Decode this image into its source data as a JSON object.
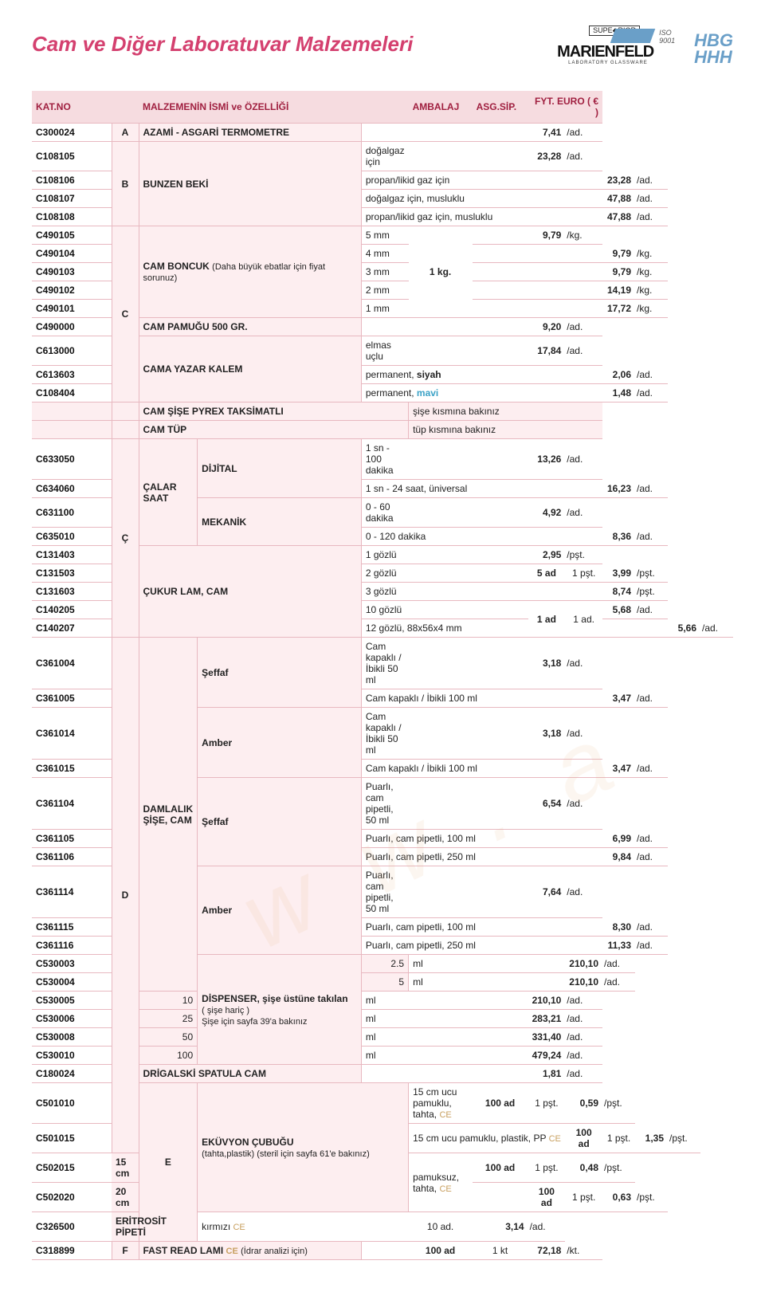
{
  "page_title": "Cam ve Diğer Laboratuvar Malzemeleri",
  "logos": {
    "marienfeld": "MARIENFELD",
    "marienfeld_sub": "LABORATORY GLASSWARE",
    "superior": "SUPE◆RIOR",
    "iso": "ISO 9001",
    "hbg1": "HBG",
    "hbg2": "HHH"
  },
  "columns": {
    "katno": "KAT.NO",
    "malzeme": "MALZEMENİN İSMİ ve ÖZELLİĞİ",
    "ambalaj": "AMBALAJ",
    "asgsip": "ASG.SİP.",
    "fiyat": "FYT. EURO ( € )"
  },
  "groups": [
    {
      "g": "A",
      "cat": "C300024",
      "name_html": "<b>AZAMİ - ASGARİ TERMOMETRE</b>",
      "spec": "",
      "amb": "",
      "sip": "",
      "price": "7,41",
      "unit": "/ad."
    },
    {
      "g": "B",
      "g_rows": 4,
      "cat": "C108105",
      "name": "BUNZEN BEKİ",
      "name_rows": 4,
      "spec": "doğalgaz için",
      "price": "23,28",
      "unit": "/ad."
    },
    {
      "cat": "C108106",
      "spec": "propan/likid gaz için",
      "price": "23,28",
      "unit": "/ad."
    },
    {
      "cat": "C108107",
      "spec": "doğalgaz için, musluklu",
      "price": "47,88",
      "unit": "/ad."
    },
    {
      "cat": "C108108",
      "spec": "propan/likid gaz için, musluklu",
      "price": "47,88",
      "unit": "/ad."
    },
    {
      "g": "C",
      "g_rows": 9,
      "cat": "C490105",
      "name_html": "<b>CAM BONCUK</b> <span class=sub>(Daha büyük ebatlar için fiyat sorunuz)</span>",
      "name_rows": 5,
      "spec": "5 mm",
      "amb": "1 kg.",
      "amb_rows": 5,
      "price": "9,79",
      "unit": "/kg."
    },
    {
      "cat": "C490104",
      "spec": "4 mm",
      "price": "9,79",
      "unit": "/kg."
    },
    {
      "cat": "C490103",
      "spec": "3 mm",
      "price": "9,79",
      "unit": "/kg."
    },
    {
      "cat": "C490102",
      "spec": "2 mm",
      "price": "14,19",
      "unit": "/kg."
    },
    {
      "cat": "C490101",
      "spec": "1 mm",
      "price": "17,72",
      "unit": "/kg."
    },
    {
      "cat": "C490000",
      "name": "CAM PAMUĞU 500 GR.",
      "name_rows": 1,
      "spec": "",
      "price": "9,20",
      "unit": "/ad."
    },
    {
      "cat": "C613000",
      "name": "CAMA YAZAR KALEM",
      "name_rows": 3,
      "spec": "elmas uçlu",
      "price": "17,84",
      "unit": "/ad."
    },
    {
      "cat": "C613603",
      "spec_html": "permanent, <span class=siyah>siyah</span>",
      "price": "2,06",
      "unit": "/ad."
    },
    {
      "cat": "C108404",
      "spec_html": "permanent, <span class=mavi>mavi</span>",
      "price": "1,48",
      "unit": "/ad."
    },
    {
      "noteRow": true,
      "name": "CAM ŞİŞE PYREX TAKSİMATLI",
      "note": "şişe kısmına bakınız"
    },
    {
      "noteRow": true,
      "name": "CAM TÜP",
      "note": "tüp kısmına bakınız"
    },
    {
      "g": "Ç",
      "g_rows": 9,
      "cat": "C633050",
      "name": "ÇALAR SAAT",
      "name_rows": 4,
      "sub": "DİJİTAL",
      "sub_rows": 2,
      "spec": "1 sn - 100 dakika",
      "price": "13,26",
      "unit": "/ad."
    },
    {
      "cat": "C634060",
      "spec": "1 sn - 24 saat, üniversal",
      "price": "16,23",
      "unit": "/ad."
    },
    {
      "cat": "C631100",
      "sub": "MEKANİK",
      "sub_rows": 2,
      "spec": "0 - 60 dakika",
      "price": "4,92",
      "unit": "/ad."
    },
    {
      "cat": "C635010",
      "spec": "0 - 120 dakika",
      "price": "8,36",
      "unit": "/ad."
    },
    {
      "cat": "C131403",
      "name": "ÇUKUR LAM, CAM",
      "name_rows": 5,
      "spec": "1 gözlü",
      "price": "2,95",
      "unit": "/pşt."
    },
    {
      "cat": "C131503",
      "spec": "2 gözlü",
      "amb": "5 ad",
      "sip": "1 pşt.",
      "price": "3,99",
      "unit": "/pşt."
    },
    {
      "cat": "C131603",
      "spec": "3 gözlü",
      "price": "8,74",
      "unit": "/pşt."
    },
    {
      "cat": "C140205",
      "spec": "10 gözlü",
      "amb": "1 ad",
      "amb_rows": 2,
      "sip": "1 ad.",
      "sip_rows": 2,
      "price": "5,68",
      "unit": "/ad."
    },
    {
      "cat": "C140207",
      "spec": "12 gözlü, 88x56x4 mm",
      "price": "5,66",
      "unit": "/ad."
    },
    {
      "g": "D",
      "g_rows": 19,
      "cat": "C361004",
      "name": "DAMLALIK ŞİŞE, CAM",
      "name_rows": 12,
      "sub": "Şeffaf",
      "sub_rows": 2,
      "spec": "Cam kapaklı / İbikli  50 ml",
      "price": "3,18",
      "unit": "/ad."
    },
    {
      "cat": "C361005",
      "spec": "Cam kapaklı / İbikli 100 ml",
      "price": "3,47",
      "unit": "/ad."
    },
    {
      "cat": "C361014",
      "sub": "Amber",
      "sub_rows": 2,
      "spec": "Cam kapaklı / İbikli  50 ml",
      "price": "3,18",
      "unit": "/ad."
    },
    {
      "cat": "C361015",
      "spec": "Cam kapaklı / İbikli  100 ml",
      "price": "3,47",
      "unit": "/ad."
    },
    {
      "cat": "C361104",
      "sub": "Şeffaf",
      "sub_rows": 3,
      "spec": "Puarlı, cam pipetli, 50 ml",
      "price": "6,54",
      "unit": "/ad."
    },
    {
      "cat": "C361105",
      "spec": "Puarlı, cam pipetli, 100 ml",
      "price": "6,99",
      "unit": "/ad."
    },
    {
      "cat": "C361106",
      "spec": "Puarlı, cam pipetli, 250 ml",
      "price": "9,84",
      "unit": "/ad."
    },
    {
      "cat": "C361114",
      "sub": "Amber",
      "sub_rows": 3,
      "spec": "Puarlı, cam pipetli,   50 ml",
      "price": "7,64",
      "unit": "/ad."
    },
    {
      "cat": "C361115",
      "spec": "Puarlı, cam pipetli, 100 ml",
      "price": "8,30",
      "unit": "/ad."
    },
    {
      "cat": "C361116",
      "spec": "Puarlı, cam pipetli, 250 ml",
      "price": "11,33",
      "unit": "/ad."
    },
    {
      "cat": "C530003",
      "name_html": "<b>DİSPENSER, şişe üstüne takılan</b><br><span class=sub>( şişe hariç )<br>Şişe için sayfa 39'a bakınız</span>",
      "name_rows": 6,
      "sub_right": "2.5",
      "spec": "ml",
      "price": "210,10",
      "unit": "/ad."
    },
    {
      "cat": "C530004",
      "sub_right": "5",
      "spec": "ml",
      "price": "210,10",
      "unit": "/ad."
    },
    {
      "cat": "C530005",
      "sub_right": "10",
      "spec": "ml",
      "price": "210,10",
      "unit": "/ad."
    },
    {
      "cat": "C530006",
      "sub_right": "25",
      "spec": "ml",
      "price": "283,21",
      "unit": "/ad."
    },
    {
      "cat": "C530008",
      "sub_right": "50",
      "spec": "ml",
      "price": "331,40",
      "unit": "/ad."
    },
    {
      "cat": "C530010",
      "sub_right": "100",
      "spec": "ml",
      "price": "479,24",
      "unit": "/ad."
    },
    {
      "cat": "C180024",
      "name": "DRİGALSKİ SPATULA CAM",
      "name_rows": 1,
      "spec": "",
      "price": "1,81",
      "unit": "/ad."
    },
    {
      "g": "E",
      "g_rows": 5,
      "cat": "C501010",
      "name_html": "<b>EKÜVYON ÇUBUĞU</b><br><span class=sub>(tahta,plastik) (steril için sayfa 61'e bakınız)</span>",
      "name_rows": 4,
      "spec_html": "15 cm ucu pamuklu, tahta, <span class=ce>CE</span>",
      "amb": "100 ad",
      "sip": "1 pşt.",
      "price": "0,59",
      "unit": "/pşt."
    },
    {
      "cat": "C501015",
      "spec_html": "15 cm ucu pamuklu, plastik, PP <span class=ce>CE</span>",
      "amb": "100 ad",
      "sip": "1 pşt.",
      "price": "1,35",
      "unit": "/pşt."
    },
    {
      "cat": "C502015",
      "sub": "15 cm",
      "sub_rows": 1,
      "spec_html": "pamuksuz, tahta, <span class=ce>CE</span>",
      "spec_rows": 2,
      "amb": "100 ad",
      "sip": "1 pşt.",
      "price": "0,48",
      "unit": "/pşt."
    },
    {
      "cat": "C502020",
      "sub": "20 cm",
      "sub_rows": 1,
      "amb": "100 ad",
      "sip": "1 pşt.",
      "price": "0,63",
      "unit": "/pşt."
    },
    {
      "cat": "C326500",
      "name": "ERİTROSİT PİPETİ",
      "name_rows": 1,
      "spec_html": "kırmızı <span class=ce>CE</span>",
      "amb": "",
      "sip": "10 ad.",
      "price": "3,14",
      "unit": "/ad."
    },
    {
      "g": "F",
      "cat": "C318899",
      "name_html": "<b>FAST READ LAMI</b>  <span class=ce>CE</span> <span class=sub>(İdrar analizi için)</span>",
      "spec": "",
      "amb": "100 ad",
      "sip": "1 kt",
      "price": "72,18",
      "unit": "/kt."
    }
  ]
}
